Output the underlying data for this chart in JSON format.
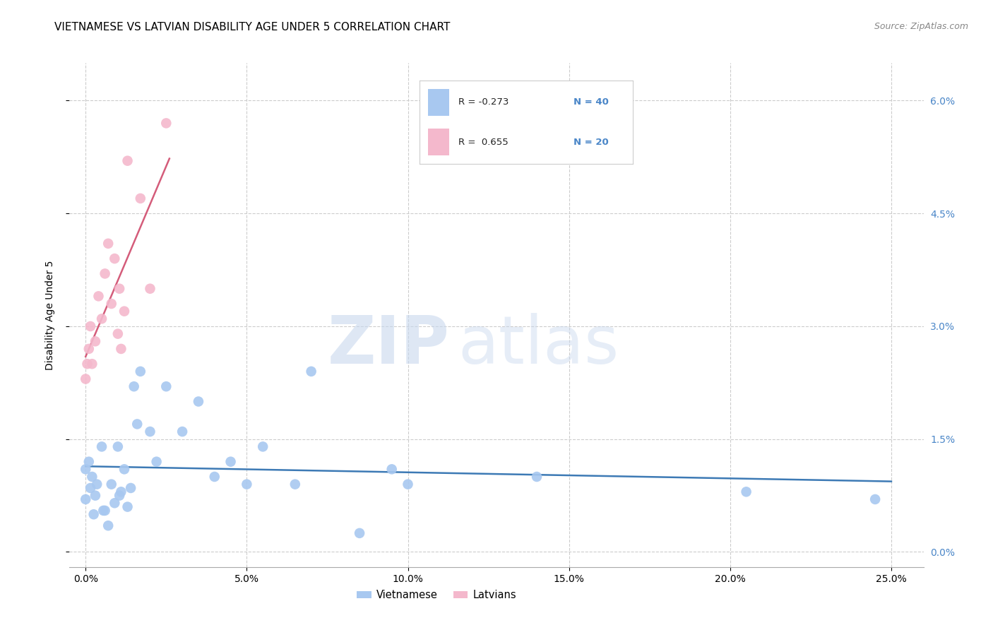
{
  "title": "VIETNAMESE VS LATVIAN DISABILITY AGE UNDER 5 CORRELATION CHART",
  "source": "Source: ZipAtlas.com",
  "xlabel_vals": [
    0.0,
    5.0,
    10.0,
    15.0,
    20.0,
    25.0
  ],
  "ylabel_vals": [
    0.0,
    1.5,
    3.0,
    4.5,
    6.0
  ],
  "ylabel_label": "Disability Age Under 5",
  "xlim": [
    -0.5,
    26.0
  ],
  "ylim": [
    -0.2,
    6.5
  ],
  "legend_r1": "R = -0.273",
  "legend_n1": "N = 40",
  "legend_r2": "R =  0.655",
  "legend_n2": "N = 20",
  "viet_x": [
    0.0,
    0.0,
    0.1,
    0.15,
    0.2,
    0.25,
    0.3,
    0.35,
    0.5,
    0.55,
    0.6,
    0.7,
    0.8,
    0.9,
    1.0,
    1.05,
    1.1,
    1.2,
    1.3,
    1.4,
    1.5,
    1.6,
    1.7,
    2.0,
    2.2,
    2.5,
    3.0,
    3.5,
    4.0,
    4.5,
    5.0,
    5.5,
    6.5,
    7.0,
    8.5,
    9.5,
    10.0,
    14.0,
    20.5,
    24.5
  ],
  "viet_y": [
    1.1,
    0.7,
    1.2,
    0.85,
    1.0,
    0.5,
    0.75,
    0.9,
    1.4,
    0.55,
    0.55,
    0.35,
    0.9,
    0.65,
    1.4,
    0.75,
    0.8,
    1.1,
    0.6,
    0.85,
    2.2,
    1.7,
    2.4,
    1.6,
    1.2,
    2.2,
    1.6,
    2.0,
    1.0,
    1.2,
    0.9,
    1.4,
    0.9,
    2.4,
    0.25,
    1.1,
    0.9,
    1.0,
    0.8,
    0.7
  ],
  "lat_x": [
    0.0,
    0.05,
    0.1,
    0.15,
    0.2,
    0.3,
    0.4,
    0.5,
    0.6,
    0.7,
    0.8,
    0.9,
    1.0,
    1.05,
    1.1,
    1.2,
    1.3,
    1.7,
    2.0,
    2.5
  ],
  "lat_y": [
    2.3,
    2.5,
    2.7,
    3.0,
    2.5,
    2.8,
    3.4,
    3.1,
    3.7,
    4.1,
    3.3,
    3.9,
    2.9,
    3.5,
    2.7,
    3.2,
    5.2,
    4.7,
    3.5,
    5.7
  ],
  "blue_scatter_color": "#a8c8f0",
  "pink_scatter_color": "#f4b8cc",
  "blue_line_color": "#3d7ab5",
  "pink_line_color": "#d45c7a",
  "background_color": "#ffffff",
  "grid_color": "#cccccc",
  "watermark_zip": "ZIP",
  "watermark_atlas": "atlas",
  "title_fontsize": 11,
  "axis_label_fontsize": 10,
  "tick_fontsize": 10,
  "right_tick_color": "#4a86c8",
  "legend_text_color": "#222222",
  "source_color": "#888888"
}
